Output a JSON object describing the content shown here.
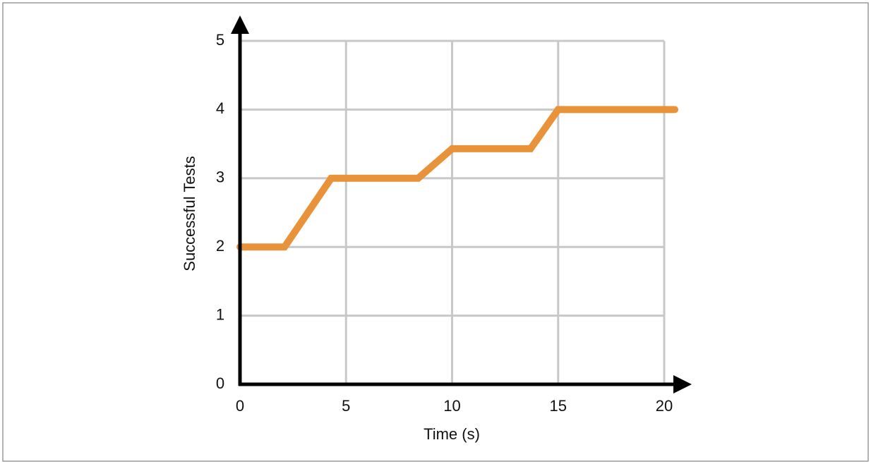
{
  "chart_data": {
    "type": "line",
    "x_label": "Time (s)",
    "y_label": "Successful Tests",
    "x": [
      0,
      2.1,
      4.3,
      8.4,
      10,
      13.7,
      15,
      20.5
    ],
    "values": [
      2,
      2,
      3,
      3,
      3.43,
      3.43,
      4,
      4
    ],
    "color": "#e8923a",
    "xlim": [
      0,
      20
    ],
    "xticks": [
      0,
      5,
      10,
      15,
      20
    ],
    "ylim": [
      0,
      5
    ],
    "yticks": [
      0,
      1,
      2,
      3,
      4,
      5
    ],
    "grid": true
  }
}
